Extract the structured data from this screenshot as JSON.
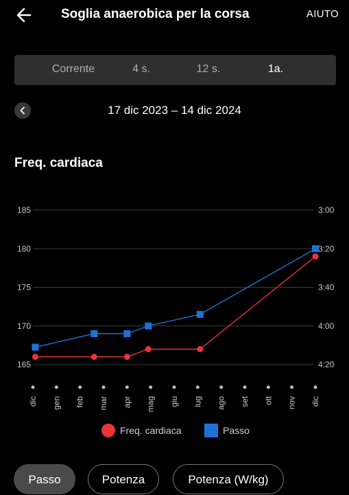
{
  "header": {
    "title": "Soglia anaerobica per la corsa",
    "help_label": "AIUTO"
  },
  "tabs": [
    {
      "label": "Corrente",
      "active": false
    },
    {
      "label": "4 s.",
      "active": false
    },
    {
      "label": "12 s.",
      "active": false
    },
    {
      "label": "1a.",
      "active": true
    }
  ],
  "period": {
    "range": "17 dic 2023 – 14 dic 2024"
  },
  "section": {
    "title": "Freq. cardiaca"
  },
  "chart_data": {
    "type": "line",
    "categories": [
      "dic",
      "gen",
      "feb",
      "mar",
      "apr",
      "mag",
      "giu",
      "lug",
      "ago",
      "set",
      "ott",
      "nov",
      "dic"
    ],
    "left_axis": {
      "ticks": [
        "185",
        "180",
        "175",
        "170",
        "165"
      ],
      "ylim": [
        165,
        185
      ]
    },
    "right_axis": {
      "ticks": [
        "3:00",
        "3:20",
        "3:40",
        "4:00",
        "4:20"
      ],
      "ylim_seconds": [
        260,
        180
      ]
    },
    "grid": true,
    "legend_position": "bottom",
    "series": [
      {
        "name": "Freq. cardiaca",
        "axis": "left",
        "color": "#e9343a",
        "marker": "circle",
        "x": [
          0.1,
          2.6,
          4.0,
          4.9,
          7.1,
          12.0
        ],
        "y": [
          166,
          166,
          166,
          167,
          167,
          179
        ]
      },
      {
        "name": "Passo",
        "axis": "right",
        "color": "#1e72d6",
        "marker": "square",
        "x": [
          0.1,
          2.6,
          4.0,
          4.9,
          7.1,
          12.0
        ],
        "y": [
          "4:11",
          "4:04",
          "4:04",
          "4:00",
          "3:54",
          "3:20"
        ]
      }
    ]
  },
  "chips": [
    {
      "label": "Passo",
      "active": true
    },
    {
      "label": "Potenza",
      "active": false
    },
    {
      "label": "Potenza (W/kg)",
      "active": false
    }
  ],
  "icons": {
    "back": "arrow-left-icon",
    "prev": "chevron-left-icon"
  },
  "colors": {
    "background": "#000000",
    "heart_rate": "#e9343a",
    "pace": "#1e72d6",
    "tabs_bg": "#2f2f2f"
  }
}
